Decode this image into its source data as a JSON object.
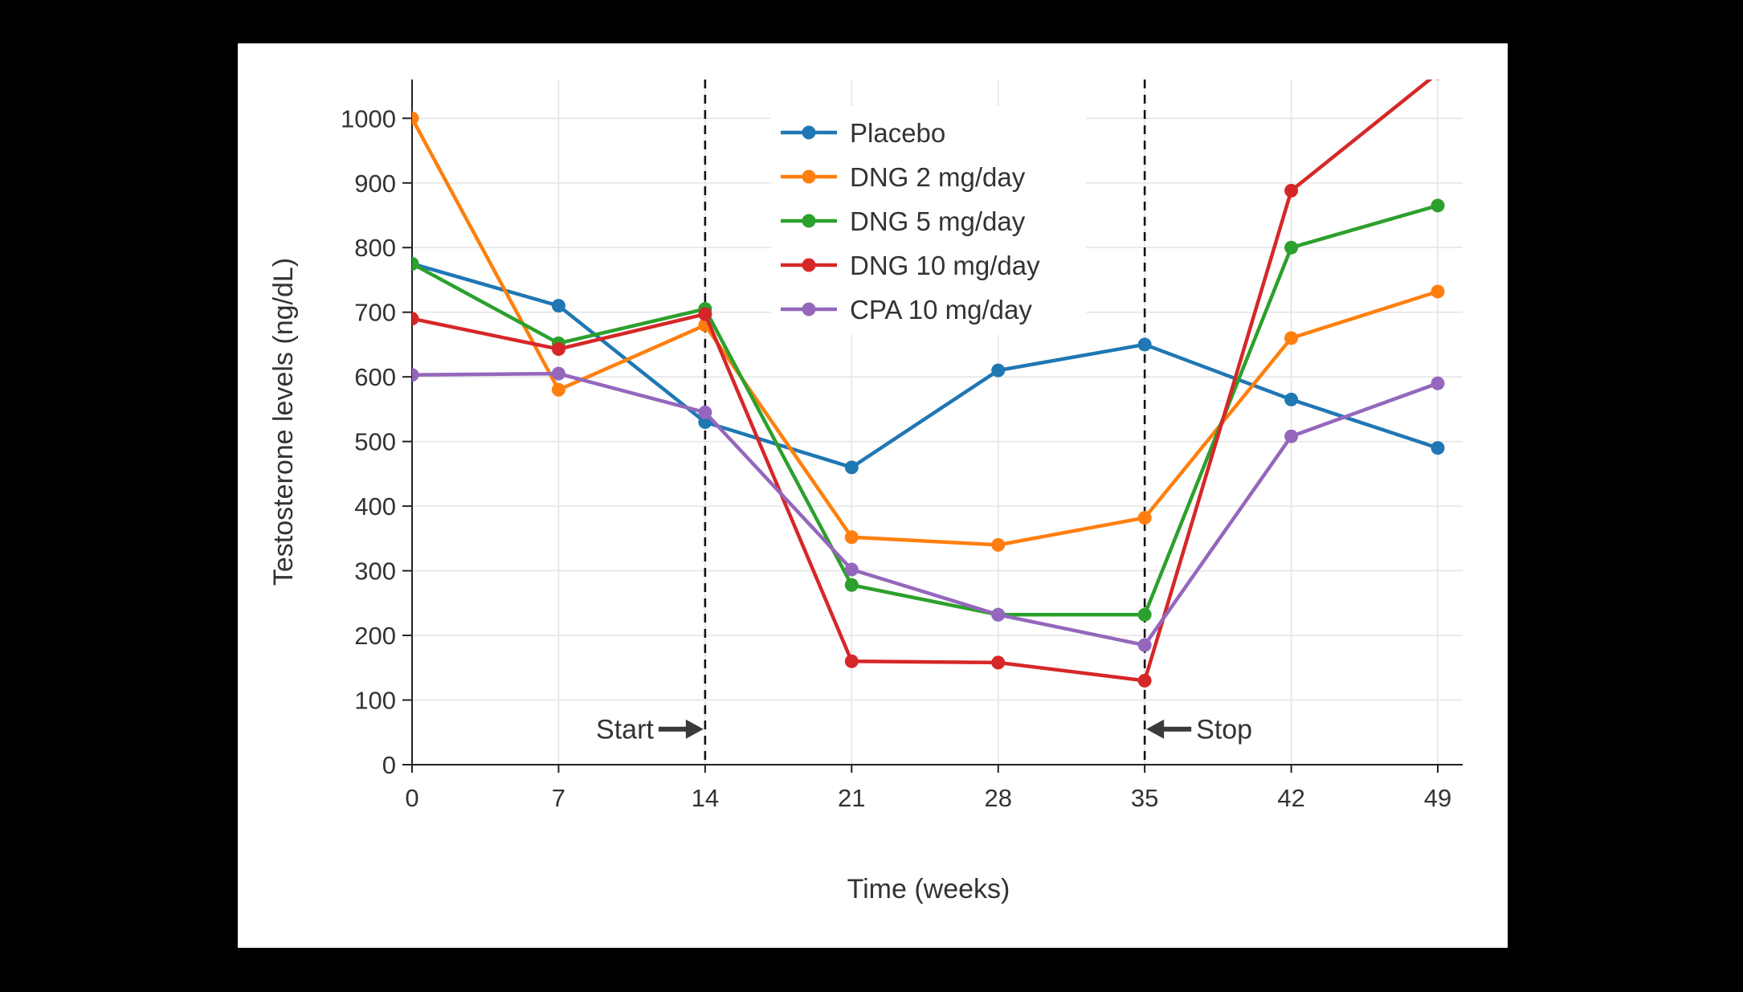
{
  "window": {
    "background_color": "#000000",
    "card_color": "#ffffff"
  },
  "chart_data": {
    "type": "line",
    "title": "",
    "xlabel": "Time (weeks)",
    "ylabel": "Testosterone levels (ng/dL)",
    "x": [
      0,
      7,
      14,
      21,
      28,
      35,
      42,
      49
    ],
    "xticks": [
      "0",
      "7",
      "14",
      "21",
      "28",
      "35",
      "42",
      "49"
    ],
    "yticks": [
      0,
      100,
      200,
      300,
      400,
      500,
      600,
      700,
      800,
      900,
      1000
    ],
    "ylim": [
      0,
      1060
    ],
    "grid": true,
    "grid_color": "#e5e5e5",
    "axis_color": "#222222",
    "text_color": "#333333",
    "legend_position": "top-center",
    "series": [
      {
        "name": "Placebo",
        "color": "#1f77b4",
        "values": [
          775,
          710,
          530,
          460,
          610,
          650,
          565,
          490
        ]
      },
      {
        "name": "DNG 2 mg/day",
        "color": "#ff7f0e",
        "values": [
          1000,
          580,
          680,
          352,
          340,
          382,
          660,
          732
        ]
      },
      {
        "name": "DNG 5 mg/day",
        "color": "#2ca02c",
        "values": [
          775,
          652,
          705,
          278,
          232,
          232,
          800,
          865
        ]
      },
      {
        "name": "DNG 10 mg/day",
        "color": "#d62728",
        "values": [
          690,
          643,
          697,
          160,
          158,
          130,
          888,
          1070
        ]
      },
      {
        "name": "CPA 10 mg/day",
        "color": "#9467bd",
        "values": [
          603,
          605,
          545,
          302,
          232,
          185,
          508,
          590
        ]
      }
    ],
    "vlines": [
      {
        "x": 14,
        "style": "dashed",
        "color": "#111111"
      },
      {
        "x": 35,
        "style": "dashed",
        "color": "#111111"
      }
    ],
    "annotations": [
      {
        "text": "Start",
        "x": 14,
        "y": 55,
        "side": "left",
        "arrow": "right"
      },
      {
        "text": "Stop",
        "x": 35,
        "y": 55,
        "side": "right",
        "arrow": "left"
      }
    ]
  }
}
